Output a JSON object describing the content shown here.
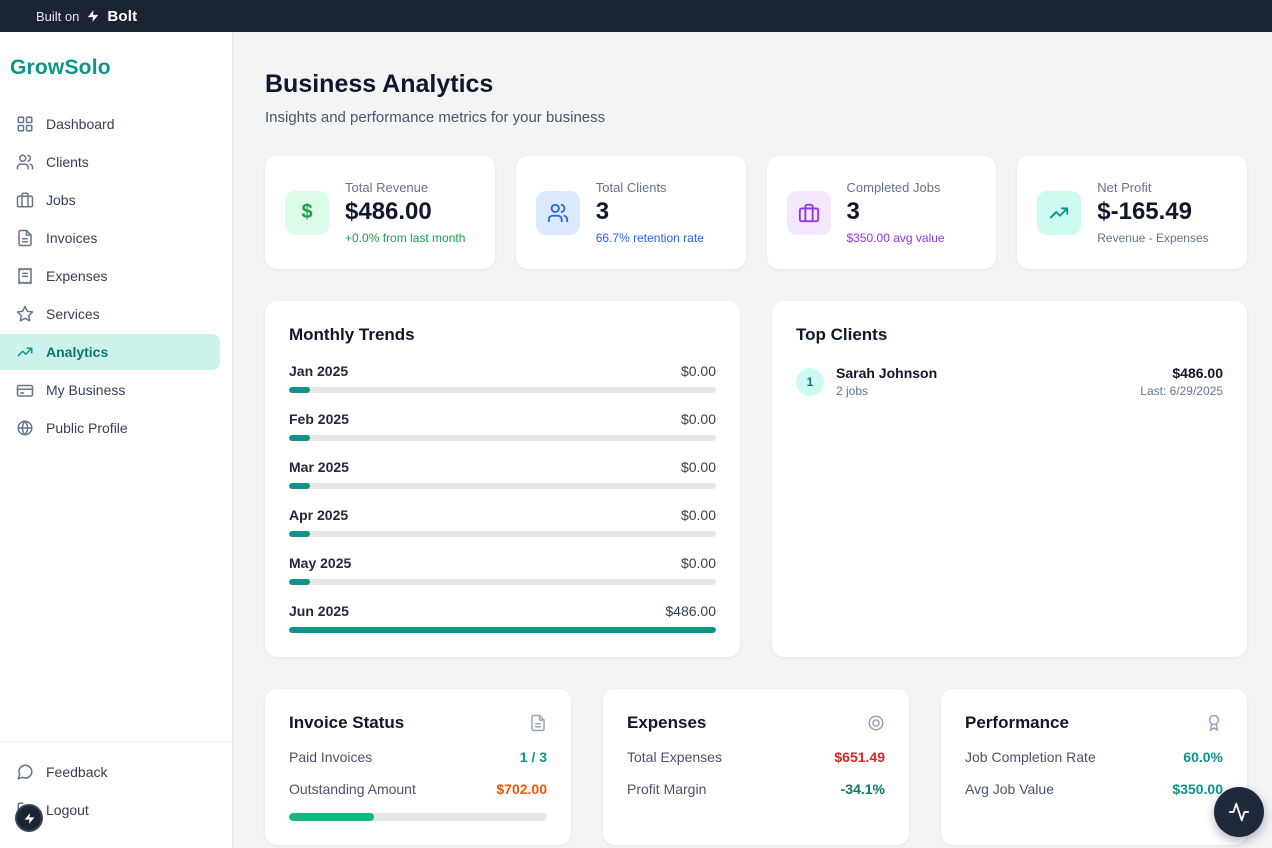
{
  "colors": {
    "teal": "#0d9488",
    "green": "#16a34a",
    "blue": "#2563eb",
    "purple": "#9333ea",
    "orange": "#ea580c",
    "red": "#dc2626",
    "topbar_navy": "#1b2434"
  },
  "topbar": {
    "built_on": "Built on",
    "brand": "Bolt"
  },
  "sidebar": {
    "logo": "GrowSolo",
    "items": [
      {
        "label": "Dashboard",
        "active": false
      },
      {
        "label": "Clients",
        "active": false
      },
      {
        "label": "Jobs",
        "active": false
      },
      {
        "label": "Invoices",
        "active": false
      },
      {
        "label": "Expenses",
        "active": false
      },
      {
        "label": "Services",
        "active": false
      },
      {
        "label": "Analytics",
        "active": true
      },
      {
        "label": "My Business",
        "active": false
      },
      {
        "label": "Public Profile",
        "active": false
      }
    ],
    "feedback": "Feedback",
    "logout": "Logout"
  },
  "header": {
    "title": "Business Analytics",
    "subtitle": "Insights and performance metrics for your business"
  },
  "stats": [
    {
      "label": "Total Revenue",
      "value": "$486.00",
      "sub": "+0.0% from last month"
    },
    {
      "label": "Total Clients",
      "value": "3",
      "sub": "66.7% retention rate"
    },
    {
      "label": "Completed Jobs",
      "value": "3",
      "sub": "$350.00 avg value"
    },
    {
      "label": "Net Profit",
      "value": "$-165.49",
      "sub": "Revenue - Expenses"
    }
  ],
  "monthly_trends": {
    "title": "Monthly Trends",
    "rows": [
      {
        "month": "Jan 2025",
        "value": "$0.00",
        "pct": 5
      },
      {
        "month": "Feb 2025",
        "value": "$0.00",
        "pct": 5
      },
      {
        "month": "Mar 2025",
        "value": "$0.00",
        "pct": 5
      },
      {
        "month": "Apr 2025",
        "value": "$0.00",
        "pct": 5
      },
      {
        "month": "May 2025",
        "value": "$0.00",
        "pct": 5
      },
      {
        "month": "Jun 2025",
        "value": "$486.00",
        "pct": 100
      }
    ]
  },
  "top_clients": {
    "title": "Top Clients",
    "items": [
      {
        "rank": "1",
        "name": "Sarah Johnson",
        "jobs": "2 jobs",
        "amount": "$486.00",
        "last": "Last: 6/29/2025"
      }
    ]
  },
  "invoice_status": {
    "title": "Invoice Status",
    "rows": [
      {
        "label": "Paid Invoices",
        "value": "1 / 3"
      },
      {
        "label": "Outstanding Amount",
        "value": "$702.00"
      }
    ],
    "progress_pct": 33
  },
  "expenses": {
    "title": "Expenses",
    "rows": [
      {
        "label": "Total Expenses",
        "value": "$651.49"
      },
      {
        "label": "Profit Margin",
        "value": "-34.1%"
      }
    ]
  },
  "performance": {
    "title": "Performance",
    "rows": [
      {
        "label": "Job Completion Rate",
        "value": "60.0%"
      },
      {
        "label": "Avg Job Value",
        "value": "$350.00"
      }
    ]
  }
}
